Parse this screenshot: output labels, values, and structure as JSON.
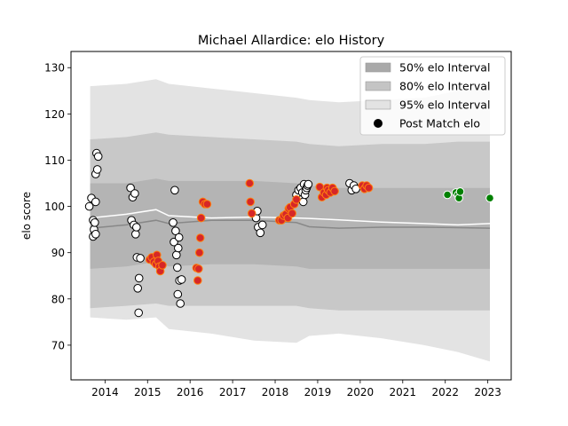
{
  "chart_data": {
    "type": "scatter",
    "title": "Michael Allardice: elo History",
    "xlabel": "",
    "ylabel": "elo score",
    "xlim": [
      2013.2,
      2023.55
    ],
    "ylim": [
      62.5,
      133.5
    ],
    "x_ticks": [
      2014,
      2015,
      2016,
      2017,
      2018,
      2019,
      2020,
      2021,
      2022,
      2023
    ],
    "y_ticks": [
      70,
      80,
      90,
      100,
      110,
      120,
      130
    ],
    "grid": false,
    "legend_position": "top-right",
    "legend": [
      {
        "label": "50% elo Interval",
        "kind": "band",
        "color": "#a9a9a9"
      },
      {
        "label": "80% elo Interval",
        "kind": "band",
        "color": "#c4c4c4"
      },
      {
        "label": "95% elo Interval",
        "kind": "band",
        "color": "#e3e3e3"
      },
      {
        "label": "Post Match elo",
        "kind": "marker",
        "color": "#000000"
      }
    ],
    "intervals": {
      "x": [
        2013.65,
        2014.5,
        2015.2,
        2015.5,
        2016.5,
        2017.5,
        2018.5,
        2018.8,
        2019.5,
        2020.5,
        2021.5,
        2022.3,
        2023.05
      ],
      "p95_upper": [
        126.0,
        126.5,
        127.5,
        126.5,
        125.5,
        124.5,
        123.5,
        123.0,
        122.5,
        123.0,
        123.5,
        125.0,
        126.5
      ],
      "p80_upper": [
        114.5,
        115.0,
        116.0,
        115.5,
        115.0,
        114.5,
        114.0,
        113.5,
        113.0,
        113.5,
        113.5,
        114.0,
        114.0
      ],
      "p50_upper": [
        105.0,
        105.0,
        106.0,
        105.5,
        105.5,
        105.5,
        105.0,
        104.5,
        104.0,
        104.0,
        104.0,
        104.0,
        104.0
      ],
      "median": [
        95.3,
        96.0,
        97.0,
        96.3,
        97.0,
        97.0,
        96.5,
        95.6,
        95.3,
        95.5,
        95.5,
        95.4,
        95.3
      ],
      "p50_lower": [
        86.5,
        87.0,
        88.0,
        87.0,
        87.5,
        87.5,
        87.0,
        86.5,
        86.5,
        86.5,
        86.5,
        86.5,
        86.5
      ],
      "p80_lower": [
        78.0,
        78.5,
        79.0,
        78.5,
        78.5,
        78.5,
        78.5,
        78.0,
        77.5,
        77.5,
        77.5,
        77.5,
        77.5
      ],
      "p95_lower": [
        76.0,
        75.5,
        76.0,
        73.5,
        72.5,
        71.0,
        70.5,
        72.0,
        72.5,
        71.5,
        70.0,
        68.5,
        66.5
      ],
      "mean_line": [
        97.5,
        98.3,
        99.3,
        98.0,
        97.5,
        97.7,
        97.5,
        97.4,
        97.1,
        96.6,
        96.3,
        96.0,
        96.3
      ]
    },
    "series": [
      {
        "fill": "#ffffff",
        "edge": "#000000",
        "points": [
          [
            2013.63,
            100.0
          ],
          [
            2013.68,
            101.8
          ],
          [
            2013.72,
            97.0
          ],
          [
            2013.72,
            93.5
          ],
          [
            2013.74,
            95.0
          ],
          [
            2013.76,
            96.5
          ],
          [
            2013.78,
            94.0
          ],
          [
            2013.78,
            101.0
          ],
          [
            2013.78,
            107.0
          ],
          [
            2013.8,
            111.5
          ],
          [
            2013.82,
            108.0
          ],
          [
            2013.84,
            110.8
          ],
          [
            2014.6,
            104.0
          ],
          [
            2014.62,
            97.0
          ],
          [
            2014.65,
            102.0
          ],
          [
            2014.68,
            96.0
          ],
          [
            2014.7,
            102.8
          ],
          [
            2014.72,
            94.0
          ],
          [
            2014.74,
            95.5
          ],
          [
            2014.75,
            89.0
          ],
          [
            2014.77,
            82.3
          ],
          [
            2014.79,
            77.0
          ],
          [
            2014.8,
            84.5
          ],
          [
            2014.83,
            88.8
          ],
          [
            2015.6,
            96.5
          ],
          [
            2015.62,
            92.3
          ],
          [
            2015.64,
            103.5
          ],
          [
            2015.66,
            94.7
          ],
          [
            2015.68,
            89.5
          ],
          [
            2015.7,
            86.8
          ],
          [
            2015.71,
            81.0
          ],
          [
            2015.72,
            91.0
          ],
          [
            2015.74,
            93.3
          ],
          [
            2015.75,
            84.0
          ],
          [
            2015.77,
            79.0
          ],
          [
            2015.8,
            84.2
          ],
          [
            2017.55,
            97.5
          ],
          [
            2017.58,
            99.0
          ],
          [
            2017.6,
            95.5
          ],
          [
            2017.65,
            94.3
          ],
          [
            2017.7,
            96.0
          ],
          [
            2018.5,
            102.5
          ],
          [
            2018.55,
            103.5
          ],
          [
            2018.6,
            104.0
          ],
          [
            2018.62,
            101.5
          ],
          [
            2018.64,
            103.0
          ],
          [
            2018.66,
            101.0
          ],
          [
            2018.68,
            104.8
          ],
          [
            2018.7,
            102.5
          ],
          [
            2018.72,
            103.5
          ],
          [
            2018.74,
            104.0
          ],
          [
            2018.76,
            104.5
          ],
          [
            2018.78,
            104.8
          ],
          [
            2019.75,
            105.0
          ],
          [
            2019.8,
            103.5
          ],
          [
            2019.85,
            104.5
          ],
          [
            2019.9,
            103.8
          ]
        ]
      },
      {
        "fill": "#d62728",
        "edge": "#ff7f0e",
        "points": [
          [
            2015.05,
            88.5
          ],
          [
            2015.1,
            89.0
          ],
          [
            2015.15,
            88.0
          ],
          [
            2015.2,
            87.5
          ],
          [
            2015.22,
            89.5
          ],
          [
            2015.25,
            88.2
          ],
          [
            2015.28,
            87.0
          ],
          [
            2015.3,
            86.0
          ],
          [
            2015.35,
            87.3
          ],
          [
            2016.15,
            86.7
          ],
          [
            2016.18,
            84.0
          ],
          [
            2016.2,
            86.5
          ],
          [
            2016.22,
            90.0
          ],
          [
            2016.24,
            93.2
          ],
          [
            2016.26,
            97.5
          ],
          [
            2016.3,
            101.0
          ],
          [
            2016.35,
            100.5
          ],
          [
            2016.4,
            100.5
          ],
          [
            2017.4,
            105.0
          ],
          [
            2017.42,
            101.0
          ],
          [
            2017.45,
            98.5
          ],
          [
            2018.1,
            97.0
          ],
          [
            2018.15,
            97.0
          ],
          [
            2018.2,
            98.0
          ],
          [
            2018.25,
            98.3
          ],
          [
            2018.3,
            97.5
          ],
          [
            2018.32,
            99.5
          ],
          [
            2018.35,
            99.8
          ],
          [
            2018.4,
            98.5
          ],
          [
            2018.45,
            100.5
          ],
          [
            2018.5,
            101.5
          ],
          [
            2019.05,
            104.2
          ],
          [
            2019.1,
            102.0
          ],
          [
            2019.15,
            103.0
          ],
          [
            2019.2,
            102.5
          ],
          [
            2019.22,
            104.0
          ],
          [
            2019.25,
            103.5
          ],
          [
            2019.3,
            103.0
          ],
          [
            2019.35,
            104.0
          ],
          [
            2019.4,
            103.3
          ],
          [
            2020.05,
            104.5
          ],
          [
            2020.1,
            103.8
          ],
          [
            2020.15,
            104.5
          ],
          [
            2020.2,
            104.0
          ]
        ]
      },
      {
        "fill": "#008000",
        "edge": "#ffffff",
        "points": [
          [
            2022.05,
            102.5
          ],
          [
            2022.25,
            103.0
          ],
          [
            2022.3,
            102.5
          ],
          [
            2022.32,
            101.8
          ],
          [
            2022.35,
            103.2
          ],
          [
            2023.05,
            101.8
          ]
        ]
      }
    ]
  }
}
